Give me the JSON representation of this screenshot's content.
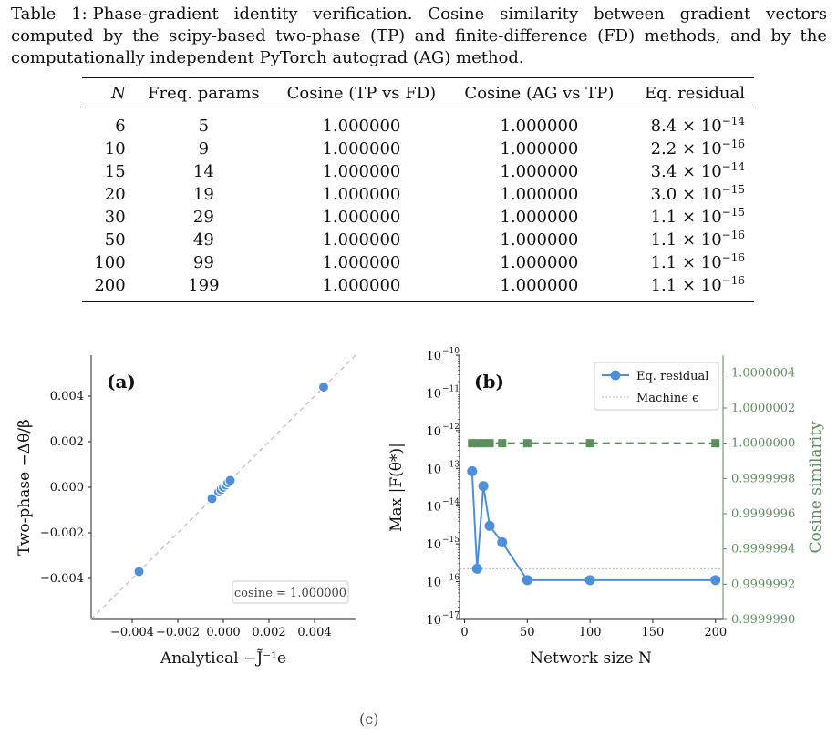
{
  "caption": {
    "label": "Table 1:",
    "text": "Phase-gradient identity verification. Cosine similarity between gradient vectors computed by the scipy-based two-phase (TP) and finite-difference (FD) methods, and by the computationally independent PyTorch autograd (AG) method."
  },
  "table": {
    "headers": [
      "N",
      "Freq. params",
      "Cosine (TP vs FD)",
      "Cosine (AG vs TP)",
      "Eq. residual"
    ],
    "rows": [
      {
        "n": "6",
        "freq": "5",
        "cos_tp_fd": "1.000000",
        "cos_ag_tp": "1.000000",
        "res_mant": "8.4",
        "res_exp": "−14"
      },
      {
        "n": "10",
        "freq": "9",
        "cos_tp_fd": "1.000000",
        "cos_ag_tp": "1.000000",
        "res_mant": "2.2",
        "res_exp": "−16"
      },
      {
        "n": "15",
        "freq": "14",
        "cos_tp_fd": "1.000000",
        "cos_ag_tp": "1.000000",
        "res_mant": "3.4",
        "res_exp": "−14"
      },
      {
        "n": "20",
        "freq": "19",
        "cos_tp_fd": "1.000000",
        "cos_ag_tp": "1.000000",
        "res_mant": "3.0",
        "res_exp": "−15"
      },
      {
        "n": "30",
        "freq": "29",
        "cos_tp_fd": "1.000000",
        "cos_ag_tp": "1.000000",
        "res_mant": "1.1",
        "res_exp": "−15"
      },
      {
        "n": "50",
        "freq": "49",
        "cos_tp_fd": "1.000000",
        "cos_ag_tp": "1.000000",
        "res_mant": "1.1",
        "res_exp": "−16"
      },
      {
        "n": "100",
        "freq": "99",
        "cos_tp_fd": "1.000000",
        "cos_ag_tp": "1.000000",
        "res_mant": "1.1",
        "res_exp": "−16"
      },
      {
        "n": "200",
        "freq": "199",
        "cos_tp_fd": "1.000000",
        "cos_ag_tp": "1.000000",
        "res_mant": "1.1",
        "res_exp": "−16"
      }
    ]
  },
  "figure_caption": "(c)",
  "chart_data": [
    {
      "type": "scatter",
      "panel_label": "(a)",
      "xlabel": "Analytical −J̃⁻¹e",
      "ylabel": "Two-phase −Δθ/β",
      "xlim": [
        -0.0058,
        0.0058
      ],
      "ylim": [
        -0.0058,
        0.0058
      ],
      "xticks": [
        "−0.004",
        "−0.002",
        "0.000",
        "0.002",
        "0.004"
      ],
      "yticks": [
        "−0.004",
        "−0.002",
        "0.000",
        "0.002",
        "0.004"
      ],
      "reference_line": "y = x",
      "annotation": "cosine = 1.000000",
      "color": "#4e8fdb",
      "points": [
        {
          "x": -0.0037,
          "y": -0.0037
        },
        {
          "x": -0.0005,
          "y": -0.0005
        },
        {
          "x": -0.0002,
          "y": -0.0002
        },
        {
          "x": -0.0001,
          "y": -0.0001
        },
        {
          "x": 0.0,
          "y": 0.0
        },
        {
          "x": 0.0001,
          "y": 0.0001
        },
        {
          "x": 0.0002,
          "y": 0.0002
        },
        {
          "x": 0.0003,
          "y": 0.0003
        },
        {
          "x": 0.0044,
          "y": 0.0044
        }
      ]
    },
    {
      "type": "line",
      "panel_label": "(b)",
      "xlabel": "Network size N",
      "ylabel": "Max |F(θ*)|",
      "y2label": "Cosine similarity",
      "xlim": [
        -4,
        206
      ],
      "xticks": [
        "0",
        "50",
        "100",
        "150",
        "200"
      ],
      "ylim_log": [
        -17,
        -10
      ],
      "yticks": [
        "10",
        "10",
        "10",
        "10",
        "10",
        "10",
        "10",
        "10"
      ],
      "ytick_exps": [
        "−10",
        "−11",
        "−12",
        "−13",
        "−14",
        "−15",
        "−16",
        "−17"
      ],
      "y2lim": [
        0.999999,
        1.0000005
      ],
      "y2ticks": [
        "1.0000004",
        "1.0000002",
        "1.0000000",
        "0.9999998",
        "0.9999996",
        "0.9999994",
        "0.9999992",
        "0.9999990"
      ],
      "legend": [
        "Eq. residual",
        "Machine ϵ"
      ],
      "legend_position": "top-right",
      "machine_eps": 2.2e-16,
      "colors": {
        "residual": "#4e8fdb",
        "cosine": "#5b8f5b",
        "eps": "#bbbbbb"
      },
      "x": [
        6,
        10,
        15,
        20,
        30,
        50,
        100,
        200
      ],
      "residual": [
        8.4e-14,
        2.2e-16,
        3.4e-14,
        3e-15,
        1.1e-15,
        1.1e-16,
        1.1e-16,
        1.1e-16
      ],
      "cosine": [
        1.0,
        1.0,
        1.0,
        1.0,
        1.0,
        1.0,
        1.0,
        1.0
      ]
    }
  ]
}
